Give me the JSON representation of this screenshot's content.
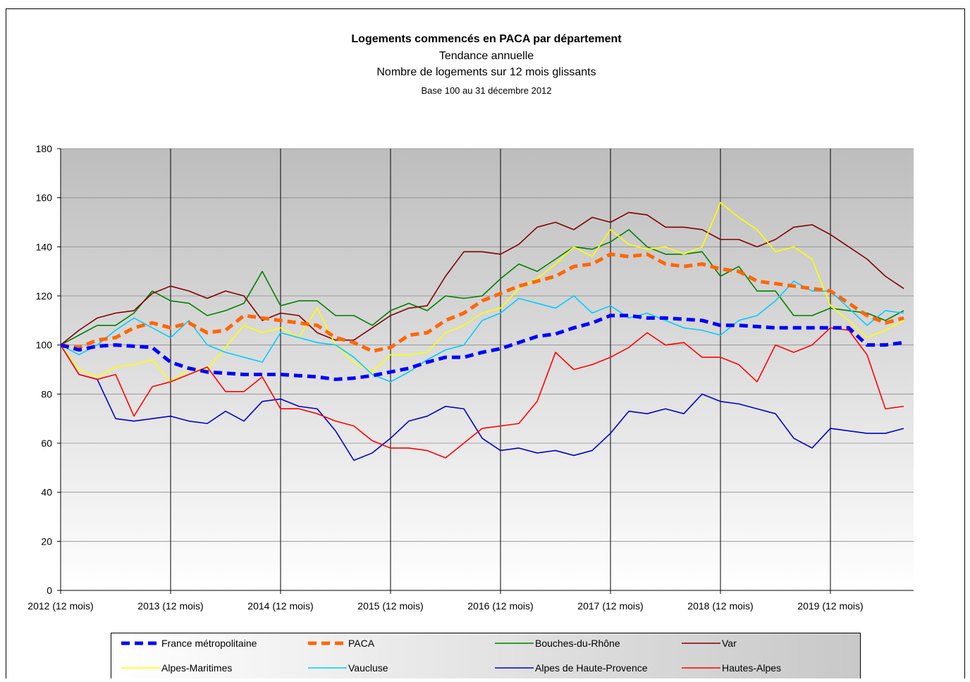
{
  "chart_data": {
    "type": "line",
    "title": "Logements commencés en PACA par département",
    "subtitle": "Tendance annuelle",
    "subtitle2": "Nombre de logements sur 12 mois glissants",
    "note": "Base 100 au 31 décembre 2012",
    "categories": [
      "2012 (12 mois)",
      null,
      null,
      null,
      null,
      null,
      "2013 (12 mois)",
      null,
      null,
      null,
      null,
      null,
      "2014 (12 mois)",
      null,
      null,
      null,
      null,
      null,
      "2015 (12 mois)",
      null,
      null,
      null,
      null,
      null,
      "2016 (12 mois)",
      null,
      null,
      null,
      null,
      null,
      "2017 (12 mois)",
      null,
      null,
      null,
      null,
      null,
      "2018 (12 mois)",
      null,
      null,
      null,
      null,
      null,
      "2019 (12 mois)",
      null,
      null,
      null,
      null
    ],
    "ylim": [
      0,
      180
    ],
    "yticks": [
      0,
      20,
      40,
      60,
      80,
      100,
      120,
      140,
      160,
      180
    ],
    "grid": true,
    "series": [
      {
        "name": "France métropolitaine",
        "color": "#0000ff",
        "style": "dashed",
        "values": [
          100,
          98,
          99.5,
          100,
          99.5,
          99,
          93,
          90.5,
          89,
          88.5,
          88,
          88,
          88,
          87.5,
          87,
          86,
          86.5,
          87.5,
          89,
          90.5,
          93,
          95,
          95,
          97,
          98.5,
          101,
          103.5,
          104.5,
          107,
          109,
          112,
          112,
          111,
          111,
          110.5,
          110,
          108,
          108,
          107.5,
          107,
          107,
          107,
          107,
          107,
          100,
          100,
          101
        ]
      },
      {
        "name": "PACA",
        "color": "#ff6600",
        "style": "dashed",
        "values": [
          100,
          99,
          102,
          103,
          107,
          109,
          107,
          109,
          105,
          106,
          112,
          111,
          110,
          109,
          108,
          103,
          101,
          97.5,
          99,
          104,
          105,
          110,
          113,
          118,
          121,
          124,
          126,
          128,
          132,
          133,
          137,
          136,
          137,
          133,
          132,
          133,
          131,
          130,
          126,
          125,
          124,
          123,
          122,
          117,
          112,
          109,
          111
        ]
      },
      {
        "name": "Bouches-du-Rhône",
        "color": "#008000",
        "style": "solid",
        "values": [
          100,
          104,
          108,
          108,
          113,
          122,
          118,
          117,
          112,
          114,
          117,
          130,
          116,
          118,
          118,
          112,
          112,
          108,
          114,
          117,
          114,
          120,
          119,
          120,
          127,
          133,
          130,
          135,
          140,
          139,
          142,
          147,
          140,
          137,
          137,
          138,
          128,
          132,
          122,
          122,
          112,
          112,
          115,
          114,
          113,
          110,
          114
        ]
      },
      {
        "name": "Var",
        "color": "#800000",
        "style": "solid",
        "values": [
          100,
          106,
          111,
          113,
          114,
          121,
          124,
          122,
          119,
          122,
          120,
          110,
          113,
          112,
          105,
          102,
          102,
          107,
          112,
          115,
          116,
          128,
          138,
          138,
          137,
          141,
          148,
          150,
          147,
          152,
          150,
          154,
          153,
          148,
          148,
          147,
          143,
          143,
          140,
          143,
          148,
          149,
          145,
          140,
          135,
          128,
          123
        ]
      },
      {
        "name": "Alpes-Maritimes",
        "color": "#ffff00",
        "style": "solid",
        "values": [
          100,
          90,
          87,
          91,
          92,
          94,
          85,
          90,
          90,
          99,
          108,
          105,
          107,
          103,
          115,
          100,
          93,
          89,
          96,
          96,
          97,
          105,
          108,
          113,
          115,
          123,
          127,
          133,
          140,
          136,
          147,
          141,
          139,
          140,
          137,
          140,
          158,
          152,
          147,
          138,
          140,
          135,
          116,
          110,
          103,
          106,
          110
        ]
      },
      {
        "name": "Vaucluse",
        "color": "#00ccff",
        "style": "solid",
        "values": [
          100,
          96,
          100,
          106,
          111,
          107,
          103,
          110,
          100,
          97,
          95,
          93,
          105,
          103,
          101,
          100,
          95,
          88,
          85,
          89,
          94,
          98,
          100,
          110,
          113,
          119,
          117,
          115,
          120,
          113,
          116,
          111,
          113,
          110,
          107,
          106,
          104,
          110,
          112,
          118,
          126,
          122,
          122,
          115,
          108,
          114,
          113
        ]
      },
      {
        "name": "Alpes de Haute-Provence",
        "color": "#0000cc",
        "style": "solid",
        "values": [
          100,
          88,
          86,
          70,
          69,
          70,
          71,
          69,
          68,
          73,
          69,
          77,
          78,
          75,
          74,
          65,
          53,
          56,
          62,
          69,
          71,
          75,
          74,
          62,
          57,
          58,
          56,
          57,
          55,
          57,
          64,
          73,
          72,
          74,
          72,
          80,
          77,
          76,
          74,
          72,
          62,
          58,
          66,
          65,
          64,
          64,
          66
        ]
      },
      {
        "name": "Hautes-Alpes",
        "color": "#ff0000",
        "style": "solid",
        "values": [
          100,
          88,
          86,
          88,
          71,
          83,
          85,
          88,
          91,
          81,
          81,
          87,
          74,
          74,
          72,
          69,
          67,
          61,
          58,
          58,
          57,
          54,
          60,
          66,
          67,
          68,
          77,
          97,
          90,
          92,
          95,
          99,
          105,
          100,
          101,
          95,
          95,
          92,
          85,
          100,
          97,
          100,
          107,
          106,
          96,
          74,
          75
        ]
      }
    ]
  }
}
